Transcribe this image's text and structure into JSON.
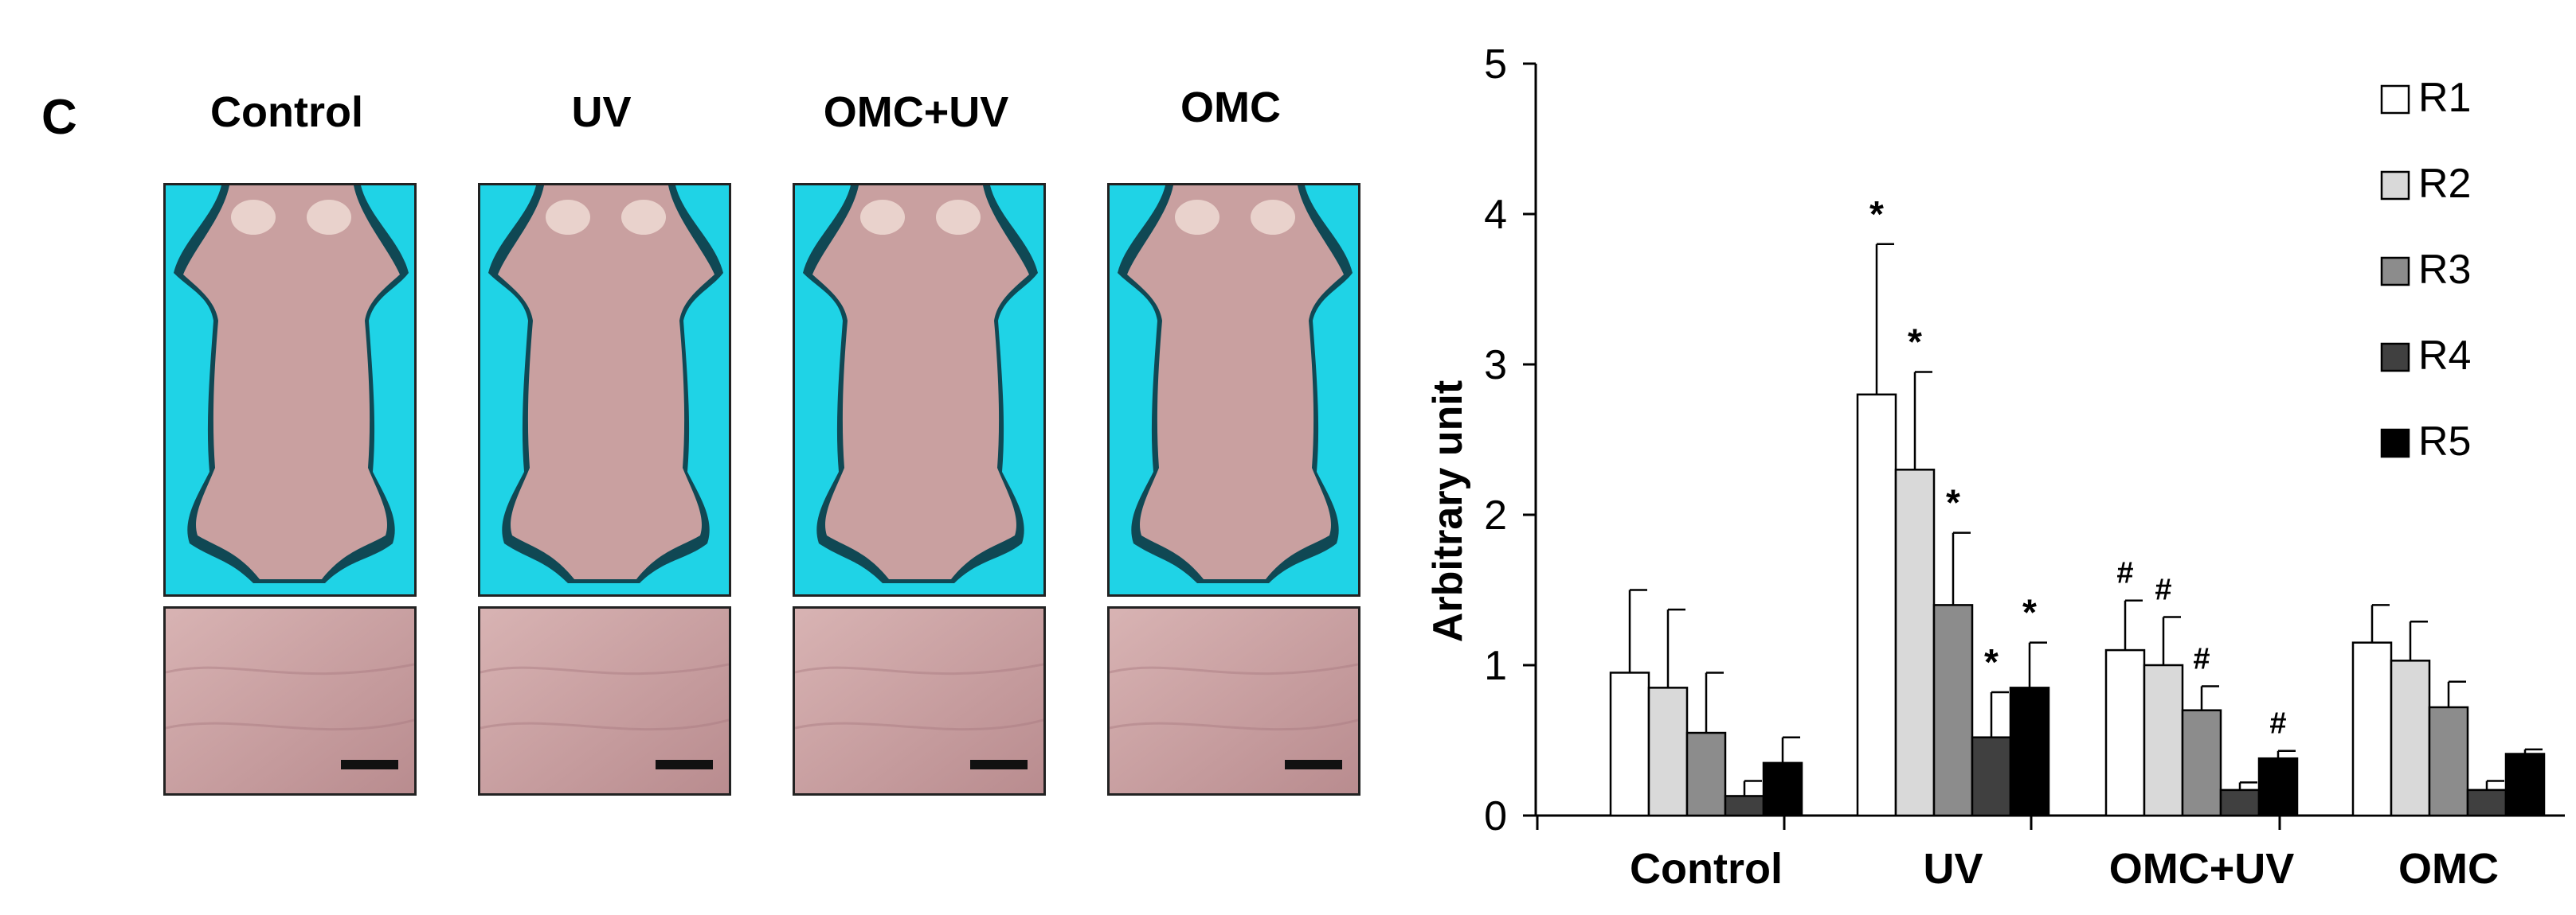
{
  "panel_label": "C",
  "photo_columns": [
    {
      "label": "Control"
    },
    {
      "label": "UV"
    },
    {
      "label": "OMC+UV"
    },
    {
      "label": "OMC"
    }
  ],
  "colors": {
    "photo_background": "#1fd3e6",
    "skin": "#c9a0a0",
    "scale_bar": "#111111",
    "R1": "#ffffff",
    "R2": "#d9d9d9",
    "R3": "#8c8c8c",
    "R4": "#404040",
    "R5": "#000000"
  },
  "chart_data": {
    "type": "bar",
    "ylabel": "Arbitrary unit",
    "xlabel": "",
    "ylim": [
      0,
      5
    ],
    "yticks": [
      "0",
      "1",
      "2",
      "3",
      "4",
      "5"
    ],
    "categories": [
      "Control",
      "UV",
      "OMC+UV",
      "OMC"
    ],
    "legend_position": "top-right",
    "series": [
      {
        "name": "R1",
        "values": [
          0.95,
          2.8,
          1.1,
          1.15
        ],
        "errors": [
          0.55,
          1.0,
          0.33,
          0.25
        ],
        "marks": [
          "",
          "*",
          "#",
          ""
        ]
      },
      {
        "name": "R2",
        "values": [
          0.85,
          2.3,
          1.0,
          1.03
        ],
        "errors": [
          0.52,
          0.65,
          0.32,
          0.26
        ],
        "marks": [
          "",
          "*",
          "#",
          ""
        ]
      },
      {
        "name": "R3",
        "values": [
          0.55,
          1.4,
          0.7,
          0.72
        ],
        "errors": [
          0.4,
          0.48,
          0.16,
          0.17
        ],
        "marks": [
          "",
          "*",
          "#",
          ""
        ]
      },
      {
        "name": "R4",
        "values": [
          0.13,
          0.52,
          0.17,
          0.17
        ],
        "errors": [
          0.1,
          0.3,
          0.05,
          0.06
        ],
        "marks": [
          "",
          "*",
          "",
          ""
        ]
      },
      {
        "name": "R5",
        "values": [
          0.35,
          0.85,
          0.38,
          0.41
        ],
        "errors": [
          0.17,
          0.3,
          0.05,
          0.03
        ],
        "marks": [
          "",
          "*",
          "#",
          ""
        ]
      }
    ]
  }
}
